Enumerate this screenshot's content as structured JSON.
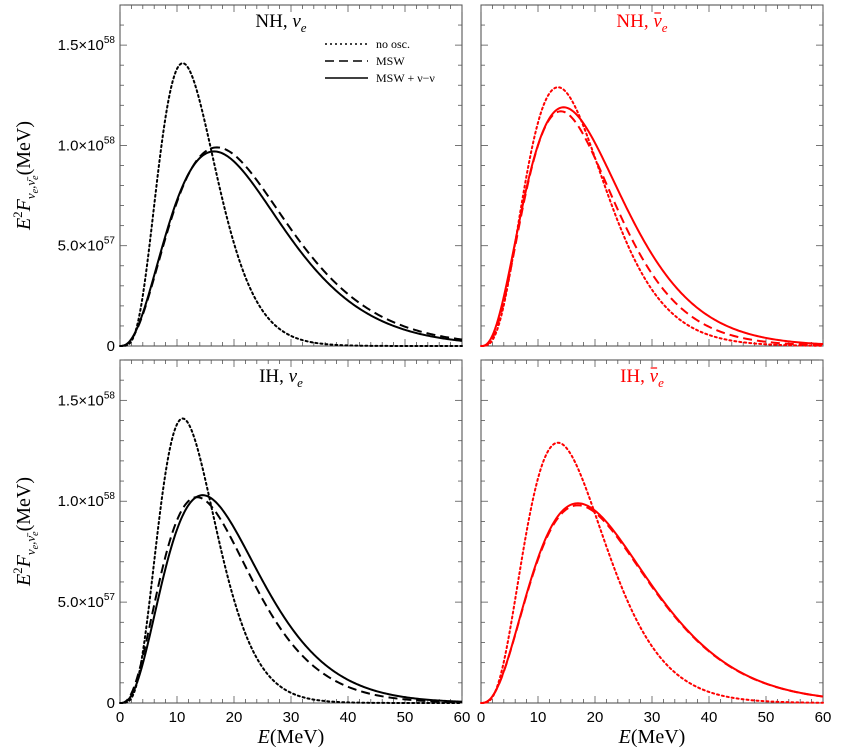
{
  "chart_data": {
    "type": "line",
    "layout": "2x2 grid of panels, shared axes",
    "xlabel": "E(MeV)",
    "ylabel": "E²F_{νe,ν̄e}(MeV)",
    "xlim": [
      0,
      60
    ],
    "ylim": [
      0,
      1.7e+58
    ],
    "x_ticks": [
      "0",
      "10",
      "20",
      "30",
      "40",
      "50",
      "60"
    ],
    "y_ticks": [
      {
        "value": 0,
        "mantissa": "0",
        "exponent": ""
      },
      {
        "value": 5e+57,
        "mantissa": "5.0×10",
        "exponent": "57"
      },
      {
        "value": 1e+58,
        "mantissa": "1.0×10",
        "exponent": "58"
      },
      {
        "value": 1.5e+58,
        "mantissa": "1.5×10",
        "exponent": "58"
      }
    ],
    "legend": {
      "placement": "top-right of first panel",
      "entries": [
        {
          "label": "no osc.",
          "style": "dotted"
        },
        {
          "label": "MSW",
          "style": "dashed"
        },
        {
          "label": "MSW + ν−ν",
          "style": "solid"
        }
      ]
    },
    "x_sample": [
      0,
      5,
      10,
      15,
      20,
      25,
      30,
      35,
      40,
      45,
      50,
      55,
      60
    ],
    "panels": [
      {
        "id": "nh-nue",
        "title_prefix": "NH,",
        "title_symbol": "ν",
        "title_sub": "e",
        "title_bar": false,
        "color": "#000000",
        "series": [
          {
            "name": "no osc.",
            "style": "dotted",
            "peak_x": 11,
            "peak_y": 1.41e+58,
            "shape": 4.6
          },
          {
            "name": "MSW",
            "style": "dashed",
            "peak_x": 17,
            "peak_y": 9.9e+57,
            "shape": 2.7
          },
          {
            "name": "MSW + ν−ν",
            "style": "solid",
            "peak_x": 16.5,
            "peak_y": 9.7e+57,
            "shape": 2.7
          }
        ]
      },
      {
        "id": "nh-nuebar",
        "title_prefix": "NH,",
        "title_symbol": "ν",
        "title_sub": "e",
        "title_bar": true,
        "color": "#ff0000",
        "series": [
          {
            "name": "no osc.",
            "style": "dotted",
            "peak_x": 13.5,
            "peak_y": 1.29e+58,
            "shape": 3.6
          },
          {
            "name": "MSW",
            "style": "dashed",
            "peak_x": 14,
            "peak_y": 1.17e+58,
            "shape": 3.1
          },
          {
            "name": "MSW + ν−ν",
            "style": "solid",
            "peak_x": 14.5,
            "peak_y": 1.19e+58,
            "shape": 2.8
          }
        ]
      },
      {
        "id": "ih-nue",
        "title_prefix": "IH,",
        "title_symbol": "ν",
        "title_sub": "e",
        "title_bar": false,
        "color": "#000000",
        "series": [
          {
            "name": "no osc.",
            "style": "dotted",
            "peak_x": 11,
            "peak_y": 1.41e+58,
            "shape": 4.6
          },
          {
            "name": "MSW",
            "style": "dashed",
            "peak_x": 13.5,
            "peak_y": 1.02e+58,
            "shape": 2.9
          },
          {
            "name": "MSW + ν−ν",
            "style": "solid",
            "peak_x": 14.5,
            "peak_y": 1.03e+58,
            "shape": 2.95
          }
        ]
      },
      {
        "id": "ih-nuebar",
        "title_prefix": "IH,",
        "title_symbol": "ν",
        "title_sub": "e",
        "title_bar": true,
        "color": "#ff0000",
        "series": [
          {
            "name": "no osc.",
            "style": "dotted",
            "peak_x": 13.5,
            "peak_y": 1.29e+58,
            "shape": 3.6
          },
          {
            "name": "MSW",
            "style": "dashed",
            "peak_x": 17,
            "peak_y": 9.8e+57,
            "shape": 2.7
          },
          {
            "name": "MSW + ν−ν",
            "style": "solid",
            "peak_x": 17,
            "peak_y": 9.9e+57,
            "shape": 2.7
          }
        ]
      }
    ]
  }
}
